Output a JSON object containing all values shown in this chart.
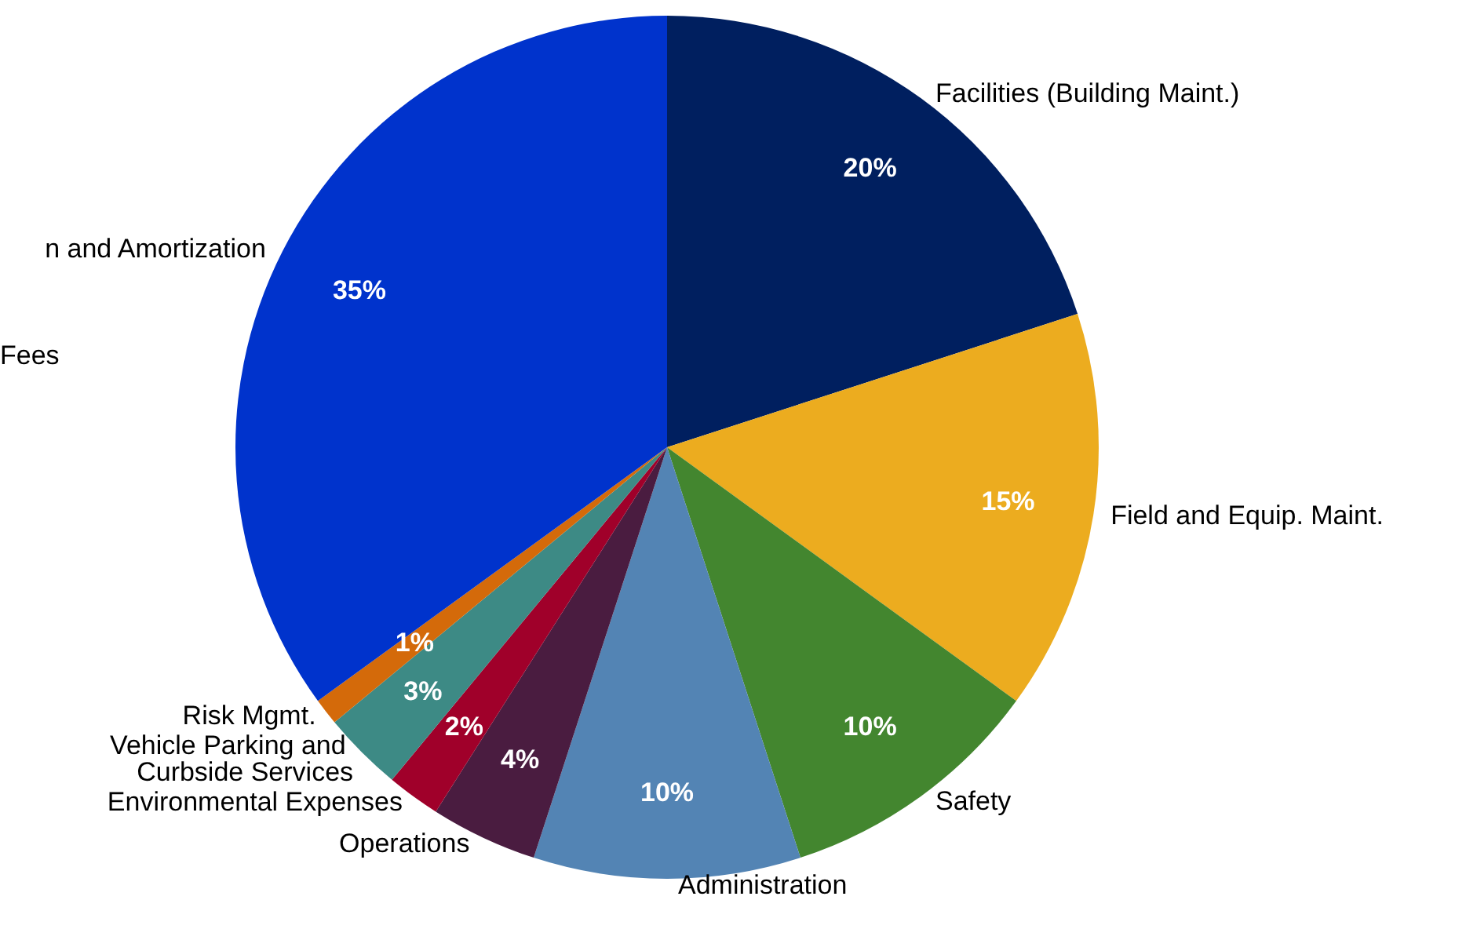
{
  "chart_data": {
    "type": "pie",
    "categories": [
      "Facilities (Building Maint.)",
      "Field and Equip. Maint.",
      "Safety",
      "Administration",
      "Operations",
      "Environmental Expenses",
      "Vehicle Parking and Curbside Services",
      "Risk Mgmt.",
      "n and Amortization"
    ],
    "values": [
      20,
      15,
      10,
      10,
      4,
      2,
      3,
      1,
      35
    ],
    "colors": [
      "#001f5f",
      "#ecac1f",
      "#43862f",
      "#5384b4",
      "#4a1c40",
      "#a0002a",
      "#3d8a85",
      "#d46a0a",
      "#0033cc"
    ],
    "value_labels": [
      "20%",
      "15%",
      "10%",
      "10%",
      "4%",
      "2%",
      "3%",
      "1%",
      "35%"
    ],
    "annotations": [
      "Fees"
    ],
    "legend": false
  }
}
